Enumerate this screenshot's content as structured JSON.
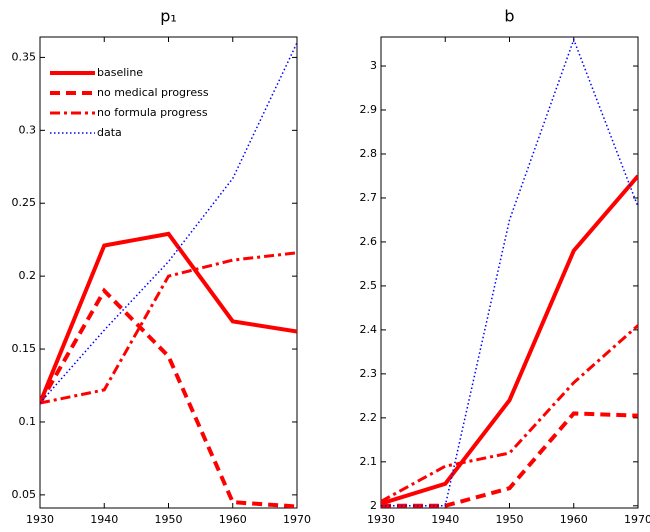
{
  "chart_data": [
    {
      "type": "line",
      "title": "p₁",
      "legend": "upper left",
      "x": [
        1930,
        1940,
        1950,
        1960,
        1970
      ],
      "xlim": [
        1930,
        1970
      ],
      "xticks": [
        1930,
        1940,
        1950,
        1960,
        1970
      ],
      "ylim": [
        0.041,
        0.364
      ],
      "yticks": [
        0.05,
        0.1,
        0.15,
        0.2,
        0.25,
        0.3,
        0.35
      ],
      "series": [
        {
          "name": "baseline",
          "color": "#ff0000",
          "dash": "solid",
          "width": 4,
          "values": [
            0.113,
            0.221,
            0.229,
            0.169,
            0.162
          ]
        },
        {
          "name": "no medical progress",
          "color": "#ff0000",
          "dash": "dashed",
          "width": 4,
          "values": [
            0.113,
            0.19,
            0.145,
            0.045,
            0.042
          ]
        },
        {
          "name": "no formula progress",
          "color": "#ff0000",
          "dash": "dashdot",
          "width": 3,
          "values": [
            0.113,
            0.122,
            0.2,
            0.211,
            0.216
          ]
        },
        {
          "name": "data",
          "color": "#0000ff",
          "dash": "dotted",
          "width": 1.5,
          "values": [
            0.113,
            0.163,
            0.21,
            0.267,
            0.36
          ]
        }
      ]
    },
    {
      "type": "line",
      "title": "b",
      "x": [
        1930,
        1940,
        1950,
        1960,
        1970
      ],
      "xlim": [
        1930,
        1970
      ],
      "xticks": [
        1930,
        1940,
        1950,
        1960,
        1970
      ],
      "ylim": [
        1.995,
        3.066
      ],
      "yticks": [
        2,
        2.1,
        2.2,
        2.3,
        2.4,
        2.5,
        2.6,
        2.7,
        2.8,
        2.9,
        3
      ],
      "series": [
        {
          "color": "#ff0000",
          "dash": "solid",
          "width": 4,
          "values": [
            2.005,
            2.05,
            2.24,
            2.58,
            2.75
          ]
        },
        {
          "color": "#ff0000",
          "dash": "dashed",
          "width": 4,
          "values": [
            2.0,
            2.0,
            2.04,
            2.21,
            2.205
          ]
        },
        {
          "color": "#ff0000",
          "dash": "dashdot",
          "width": 3,
          "values": [
            2.01,
            2.09,
            2.12,
            2.28,
            2.41
          ]
        },
        {
          "color": "#0000ff",
          "dash": "dotted",
          "width": 1.5,
          "values": [
            2.0,
            2.0,
            2.65,
            3.06,
            2.68
          ]
        }
      ]
    }
  ]
}
